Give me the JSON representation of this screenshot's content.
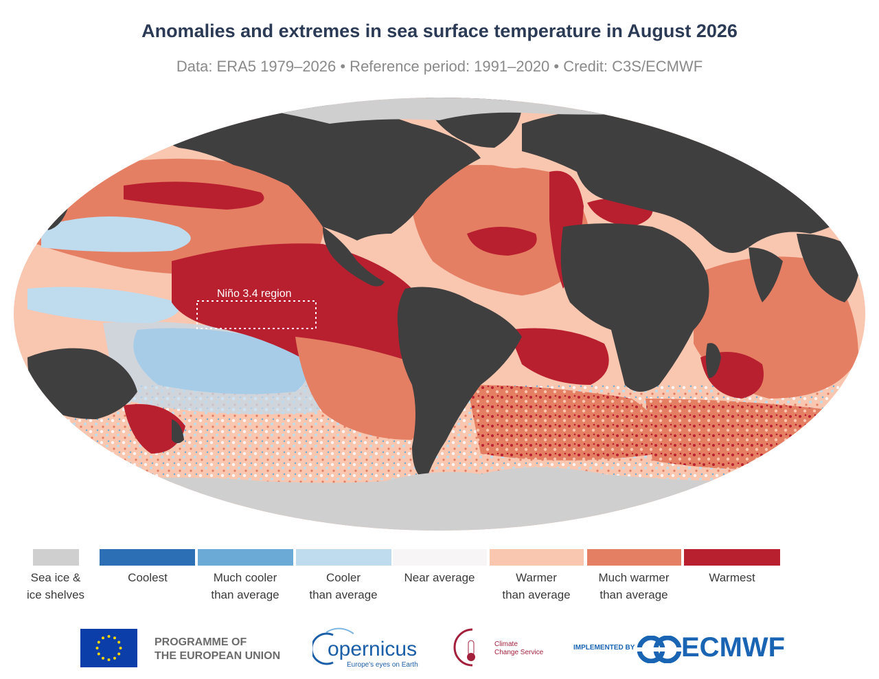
{
  "header": {
    "title": "Anomalies and extremes in sea surface temperature in August 2026",
    "subtitle": "Data: ERA5 1979–2026 • Reference period: 1991–2020 • Credit: C3S/ECMWF"
  },
  "map": {
    "region_label": "Niño 3.4 region",
    "colors": {
      "land": "#3f3f3f",
      "sea_ice": "#cfcfcf",
      "coolest": "#2d6fb5",
      "much_cooler": "#6ba9d6",
      "cooler": "#bfdcef",
      "near_average": "#f7f5f5",
      "warmer": "#f9c6b0",
      "much_warmer": "#e57f64",
      "warmest": "#b8202f"
    }
  },
  "legend": {
    "items": [
      {
        "lines": [
          "Sea ice &",
          "ice shelves"
        ],
        "color": "#cfcfcf"
      },
      {
        "lines": [
          "Coolest"
        ],
        "color": "#2d6fb5"
      },
      {
        "lines": [
          "Much cooler",
          "than average"
        ],
        "color": "#6ba9d6"
      },
      {
        "lines": [
          "Cooler",
          "than average"
        ],
        "color": "#bfdcef"
      },
      {
        "lines": [
          "Near average"
        ],
        "color": "#f7f5f5"
      },
      {
        "lines": [
          "Warmer",
          "than average"
        ],
        "color": "#f9c6b0"
      },
      {
        "lines": [
          "Much warmer",
          "than average"
        ],
        "color": "#e57f64"
      },
      {
        "lines": [
          "Warmest"
        ],
        "color": "#b8202f"
      }
    ]
  },
  "footer": {
    "eu_text_1": "PROGRAMME OF",
    "eu_text_2": "THE EUROPEAN UNION",
    "copernicus": "opernicus",
    "copernicus_tagline": "Europe's eyes on Earth",
    "ccs_1": "Climate",
    "ccs_2": "Change Service",
    "implemented_by": "IMPLEMENTED BY",
    "ecmwf": "ECMWF",
    "colors": {
      "eu_blue": "#0b3ea8",
      "eu_gold": "#ffd600",
      "ecmwf_blue": "#1a64b4",
      "ccs_red": "#a2203b",
      "copernicus_blue": "#1a5ea8"
    }
  }
}
